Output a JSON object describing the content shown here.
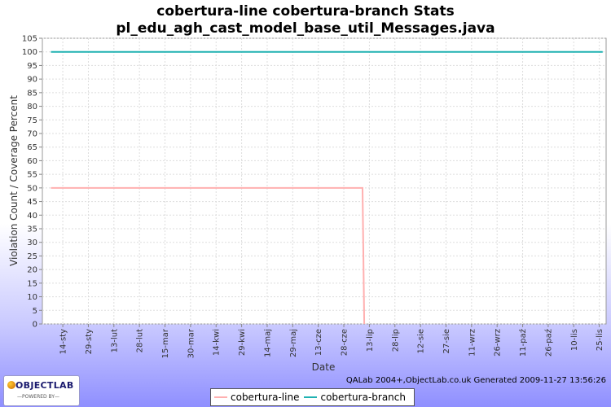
{
  "chart_data": {
    "type": "line",
    "title": "cobertura-line cobertura-branch  Stats",
    "subtitle": "pl_edu_agh_cast_model_base_util_Messages.java",
    "xlabel": "Date",
    "ylabel": "Violation Count / Coverage Percent",
    "ylim": [
      0,
      105
    ],
    "yticks": [
      0,
      5,
      10,
      15,
      20,
      25,
      30,
      35,
      40,
      45,
      50,
      55,
      60,
      65,
      70,
      75,
      80,
      85,
      90,
      95,
      100,
      105
    ],
    "xlim": [
      "2009-01-02",
      "2009-11-29"
    ],
    "xticks": [
      {
        "date": "2009-01-14",
        "label": "14-sty"
      },
      {
        "date": "2009-01-29",
        "label": "29-sty"
      },
      {
        "date": "2009-02-13",
        "label": "13-lut"
      },
      {
        "date": "2009-02-28",
        "label": "28-lut"
      },
      {
        "date": "2009-03-15",
        "label": "15-mar"
      },
      {
        "date": "2009-03-30",
        "label": "30-mar"
      },
      {
        "date": "2009-04-14",
        "label": "14-kwi"
      },
      {
        "date": "2009-04-29",
        "label": "29-kwi"
      },
      {
        "date": "2009-05-14",
        "label": "14-maj"
      },
      {
        "date": "2009-05-29",
        "label": "29-maj"
      },
      {
        "date": "2009-06-13",
        "label": "13-cze"
      },
      {
        "date": "2009-06-28",
        "label": "28-cze"
      },
      {
        "date": "2009-07-13",
        "label": "13-lip"
      },
      {
        "date": "2009-07-28",
        "label": "28-lip"
      },
      {
        "date": "2009-08-12",
        "label": "12-sie"
      },
      {
        "date": "2009-08-27",
        "label": "27-sie"
      },
      {
        "date": "2009-09-11",
        "label": "11-wrz"
      },
      {
        "date": "2009-09-26",
        "label": "26-wrz"
      },
      {
        "date": "2009-10-11",
        "label": "11-paź"
      },
      {
        "date": "2009-10-26",
        "label": "26-paź"
      },
      {
        "date": "2009-11-10",
        "label": "10-lis"
      },
      {
        "date": "2009-11-25",
        "label": "25-lis"
      }
    ],
    "grid": true,
    "legend_position": "bottom",
    "series": [
      {
        "name": "cobertura-line",
        "color": "#ffb0b0",
        "points": [
          [
            "2009-01-07",
            50
          ],
          [
            "2009-07-09",
            50
          ],
          [
            "2009-07-10",
            0
          ]
        ]
      },
      {
        "name": "cobertura-branch",
        "color": "#20b2b2",
        "points": [
          [
            "2009-01-07",
            100
          ],
          [
            "2009-11-27",
            100
          ]
        ]
      }
    ]
  },
  "footer_text": "QALab 2004+,ObjectLab.co.uk Generated 2009-11-27 13:56:26",
  "logo": {
    "main": "OBJECTLAB",
    "sub": "—POWERED BY—"
  }
}
